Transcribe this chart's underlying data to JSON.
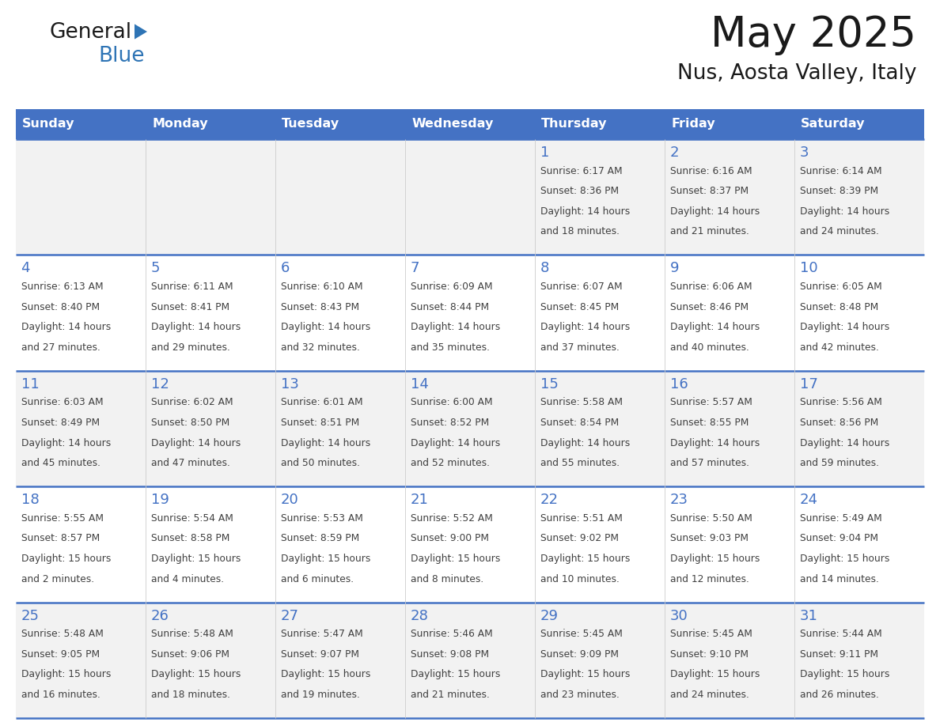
{
  "title": "May 2025",
  "subtitle": "Nus, Aosta Valley, Italy",
  "days_of_week": [
    "Sunday",
    "Monday",
    "Tuesday",
    "Wednesday",
    "Thursday",
    "Friday",
    "Saturday"
  ],
  "header_bg": "#4472C4",
  "header_text": "#FFFFFF",
  "row_bg_odd": "#F2F2F2",
  "row_bg_even": "#FFFFFF",
  "day_number_color": "#4472C4",
  "text_color": "#404040",
  "line_color": "#4472C4",
  "logo_general_color": "#1a1a1a",
  "logo_blue_color": "#2E74B5",
  "logo_triangle_color": "#2E74B5",
  "calendar_data": [
    [
      null,
      null,
      null,
      null,
      {
        "day": 1,
        "sunrise": "6:17 AM",
        "sunset": "8:36 PM",
        "daylight": "14 hours and 18 minutes."
      },
      {
        "day": 2,
        "sunrise": "6:16 AM",
        "sunset": "8:37 PM",
        "daylight": "14 hours and 21 minutes."
      },
      {
        "day": 3,
        "sunrise": "6:14 AM",
        "sunset": "8:39 PM",
        "daylight": "14 hours and 24 minutes."
      }
    ],
    [
      {
        "day": 4,
        "sunrise": "6:13 AM",
        "sunset": "8:40 PM",
        "daylight": "14 hours and 27 minutes."
      },
      {
        "day": 5,
        "sunrise": "6:11 AM",
        "sunset": "8:41 PM",
        "daylight": "14 hours and 29 minutes."
      },
      {
        "day": 6,
        "sunrise": "6:10 AM",
        "sunset": "8:43 PM",
        "daylight": "14 hours and 32 minutes."
      },
      {
        "day": 7,
        "sunrise": "6:09 AM",
        "sunset": "8:44 PM",
        "daylight": "14 hours and 35 minutes."
      },
      {
        "day": 8,
        "sunrise": "6:07 AM",
        "sunset": "8:45 PM",
        "daylight": "14 hours and 37 minutes."
      },
      {
        "day": 9,
        "sunrise": "6:06 AM",
        "sunset": "8:46 PM",
        "daylight": "14 hours and 40 minutes."
      },
      {
        "day": 10,
        "sunrise": "6:05 AM",
        "sunset": "8:48 PM",
        "daylight": "14 hours and 42 minutes."
      }
    ],
    [
      {
        "day": 11,
        "sunrise": "6:03 AM",
        "sunset": "8:49 PM",
        "daylight": "14 hours and 45 minutes."
      },
      {
        "day": 12,
        "sunrise": "6:02 AM",
        "sunset": "8:50 PM",
        "daylight": "14 hours and 47 minutes."
      },
      {
        "day": 13,
        "sunrise": "6:01 AM",
        "sunset": "8:51 PM",
        "daylight": "14 hours and 50 minutes."
      },
      {
        "day": 14,
        "sunrise": "6:00 AM",
        "sunset": "8:52 PM",
        "daylight": "14 hours and 52 minutes."
      },
      {
        "day": 15,
        "sunrise": "5:58 AM",
        "sunset": "8:54 PM",
        "daylight": "14 hours and 55 minutes."
      },
      {
        "day": 16,
        "sunrise": "5:57 AM",
        "sunset": "8:55 PM",
        "daylight": "14 hours and 57 minutes."
      },
      {
        "day": 17,
        "sunrise": "5:56 AM",
        "sunset": "8:56 PM",
        "daylight": "14 hours and 59 minutes."
      }
    ],
    [
      {
        "day": 18,
        "sunrise": "5:55 AM",
        "sunset": "8:57 PM",
        "daylight": "15 hours and 2 minutes."
      },
      {
        "day": 19,
        "sunrise": "5:54 AM",
        "sunset": "8:58 PM",
        "daylight": "15 hours and 4 minutes."
      },
      {
        "day": 20,
        "sunrise": "5:53 AM",
        "sunset": "8:59 PM",
        "daylight": "15 hours and 6 minutes."
      },
      {
        "day": 21,
        "sunrise": "5:52 AM",
        "sunset": "9:00 PM",
        "daylight": "15 hours and 8 minutes."
      },
      {
        "day": 22,
        "sunrise": "5:51 AM",
        "sunset": "9:02 PM",
        "daylight": "15 hours and 10 minutes."
      },
      {
        "day": 23,
        "sunrise": "5:50 AM",
        "sunset": "9:03 PM",
        "daylight": "15 hours and 12 minutes."
      },
      {
        "day": 24,
        "sunrise": "5:49 AM",
        "sunset": "9:04 PM",
        "daylight": "15 hours and 14 minutes."
      }
    ],
    [
      {
        "day": 25,
        "sunrise": "5:48 AM",
        "sunset": "9:05 PM",
        "daylight": "15 hours and 16 minutes."
      },
      {
        "day": 26,
        "sunrise": "5:48 AM",
        "sunset": "9:06 PM",
        "daylight": "15 hours and 18 minutes."
      },
      {
        "day": 27,
        "sunrise": "5:47 AM",
        "sunset": "9:07 PM",
        "daylight": "15 hours and 19 minutes."
      },
      {
        "day": 28,
        "sunrise": "5:46 AM",
        "sunset": "9:08 PM",
        "daylight": "15 hours and 21 minutes."
      },
      {
        "day": 29,
        "sunrise": "5:45 AM",
        "sunset": "9:09 PM",
        "daylight": "15 hours and 23 minutes."
      },
      {
        "day": 30,
        "sunrise": "5:45 AM",
        "sunset": "9:10 PM",
        "daylight": "15 hours and 24 minutes."
      },
      {
        "day": 31,
        "sunrise": "5:44 AM",
        "sunset": "9:11 PM",
        "daylight": "15 hours and 26 minutes."
      }
    ]
  ]
}
